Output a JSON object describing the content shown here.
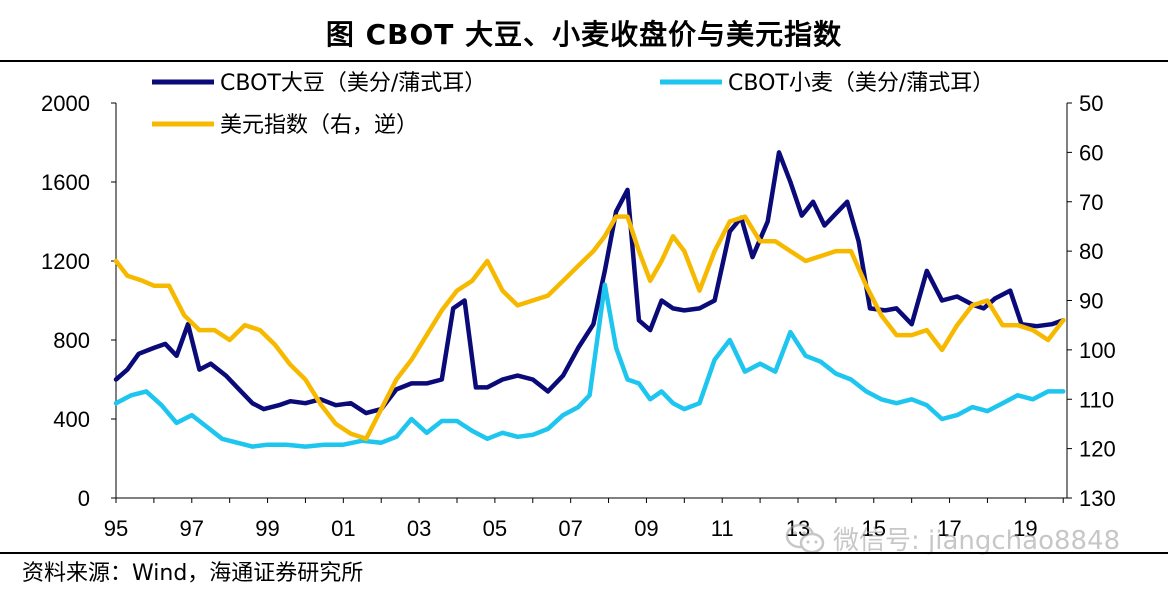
{
  "title": "图  CBOT 大豆、小麦收盘价与美元指数",
  "source": "资料来源：Wind，海通证券研究所",
  "watermark": "微信号: jiangchao8848",
  "chart_data": {
    "type": "line",
    "x_tick_labels": [
      "95",
      "97",
      "99",
      "01",
      "03",
      "05",
      "07",
      "09",
      "11",
      "13",
      "15",
      "17",
      "19"
    ],
    "xlim": [
      1995,
      2020.1
    ],
    "y_left": {
      "ylim": [
        0,
        2000
      ],
      "ticks": [
        "0",
        "400",
        "800",
        "1200",
        "1600",
        "2000"
      ]
    },
    "y_right": {
      "ylim": [
        50,
        130
      ],
      "inverted": true,
      "ticks": [
        "50",
        "60",
        "70",
        "80",
        "90",
        "100",
        "110",
        "120",
        "130"
      ]
    },
    "series": [
      {
        "name": "CBOT大豆（美分/蒲式耳）",
        "axis": "left",
        "color": "#0a0a78",
        "x": [
          1995.0,
          1995.3,
          1995.6,
          1996.0,
          1996.3,
          1996.6,
          1996.9,
          1997.2,
          1997.5,
          1997.9,
          1998.2,
          1998.6,
          1998.9,
          1999.3,
          1999.6,
          2000.0,
          2000.4,
          2000.8,
          2001.2,
          2001.6,
          2002.0,
          2002.4,
          2002.8,
          2003.2,
          2003.6,
          2003.9,
          2004.2,
          2004.5,
          2004.8,
          2005.2,
          2005.6,
          2006.0,
          2006.4,
          2006.8,
          2007.2,
          2007.6,
          2007.9,
          2008.2,
          2008.5,
          2008.8,
          2009.1,
          2009.4,
          2009.7,
          2010.0,
          2010.4,
          2010.8,
          2011.2,
          2011.5,
          2011.8,
          2012.2,
          2012.5,
          2012.8,
          2013.1,
          2013.4,
          2013.7,
          2014.0,
          2014.3,
          2014.6,
          2014.9,
          2015.3,
          2015.6,
          2016.0,
          2016.4,
          2016.8,
          2017.2,
          2017.6,
          2017.9,
          2018.2,
          2018.6,
          2018.9,
          2019.3,
          2019.7,
          2020.0
        ],
        "y": [
          600,
          650,
          730,
          760,
          780,
          720,
          880,
          650,
          680,
          620,
          560,
          480,
          450,
          470,
          490,
          480,
          500,
          470,
          480,
          430,
          450,
          550,
          580,
          580,
          600,
          960,
          1000,
          560,
          560,
          600,
          620,
          600,
          540,
          620,
          760,
          880,
          1150,
          1450,
          1560,
          900,
          850,
          1000,
          960,
          950,
          960,
          1000,
          1350,
          1420,
          1220,
          1400,
          1750,
          1600,
          1430,
          1500,
          1380,
          1440,
          1500,
          1300,
          960,
          950,
          960,
          880,
          1150,
          1000,
          1020,
          980,
          960,
          1010,
          1050,
          880,
          870,
          880,
          900
        ]
      },
      {
        "name": "CBOT小麦（美分/蒲式耳）",
        "axis": "left",
        "color": "#1ec6ef",
        "x": [
          1995.0,
          1995.4,
          1995.8,
          1996.2,
          1996.6,
          1997.0,
          1997.4,
          1997.8,
          1998.2,
          1998.6,
          1999.0,
          1999.5,
          2000.0,
          2000.5,
          2001.0,
          2001.5,
          2002.0,
          2002.4,
          2002.8,
          2003.2,
          2003.6,
          2004.0,
          2004.4,
          2004.8,
          2005.2,
          2005.6,
          2006.0,
          2006.4,
          2006.8,
          2007.2,
          2007.5,
          2007.9,
          2008.2,
          2008.5,
          2008.8,
          2009.1,
          2009.4,
          2009.7,
          2010.0,
          2010.4,
          2010.8,
          2011.2,
          2011.6,
          2012.0,
          2012.4,
          2012.8,
          2013.2,
          2013.6,
          2014.0,
          2014.4,
          2014.8,
          2015.2,
          2015.6,
          2016.0,
          2016.4,
          2016.8,
          2017.2,
          2017.6,
          2018.0,
          2018.4,
          2018.8,
          2019.2,
          2019.6,
          2020.0
        ],
        "y": [
          480,
          520,
          540,
          470,
          380,
          420,
          360,
          300,
          280,
          260,
          270,
          270,
          260,
          270,
          270,
          290,
          280,
          310,
          400,
          330,
          390,
          390,
          340,
          300,
          330,
          310,
          320,
          350,
          420,
          460,
          520,
          1080,
          760,
          600,
          580,
          500,
          540,
          480,
          450,
          480,
          700,
          800,
          640,
          680,
          640,
          840,
          720,
          690,
          630,
          600,
          540,
          500,
          480,
          500,
          470,
          400,
          420,
          460,
          440,
          480,
          520,
          500,
          540,
          540
        ]
      },
      {
        "name": "美元指数（右，逆）",
        "axis": "right",
        "color": "#f7b900",
        "x": [
          1995.0,
          1995.3,
          1995.7,
          1996.0,
          1996.4,
          1996.8,
          1997.2,
          1997.6,
          1998.0,
          1998.4,
          1998.8,
          1999.2,
          1999.6,
          2000.0,
          2000.4,
          2000.8,
          2001.2,
          2001.6,
          2002.0,
          2002.4,
          2002.8,
          2003.2,
          2003.6,
          2004.0,
          2004.4,
          2004.8,
          2005.2,
          2005.6,
          2006.0,
          2006.4,
          2006.8,
          2007.2,
          2007.6,
          2007.9,
          2008.2,
          2008.5,
          2008.8,
          2009.1,
          2009.4,
          2009.7,
          2010.0,
          2010.4,
          2010.8,
          2011.2,
          2011.6,
          2012.0,
          2012.4,
          2012.8,
          2013.2,
          2013.6,
          2014.0,
          2014.4,
          2014.8,
          2015.2,
          2015.6,
          2016.0,
          2016.4,
          2016.8,
          2017.2,
          2017.6,
          2018.0,
          2018.4,
          2018.8,
          2019.2,
          2019.6,
          2020.0
        ],
        "y": [
          82,
          85,
          86,
          87,
          87,
          93,
          96,
          96,
          98,
          95,
          96,
          99,
          103,
          106,
          111,
          115,
          117,
          118,
          112,
          106,
          102,
          97,
          92,
          88,
          86,
          82,
          88,
          91,
          90,
          89,
          86,
          83,
          80,
          77,
          73,
          73,
          80,
          86,
          82,
          77,
          80,
          88,
          80,
          74,
          73,
          78,
          78,
          80,
          82,
          81,
          80,
          80,
          87,
          93,
          97,
          97,
          96,
          100,
          95,
          91,
          90,
          95,
          95,
          96,
          98,
          94
        ]
      }
    ],
    "legend": "top"
  }
}
